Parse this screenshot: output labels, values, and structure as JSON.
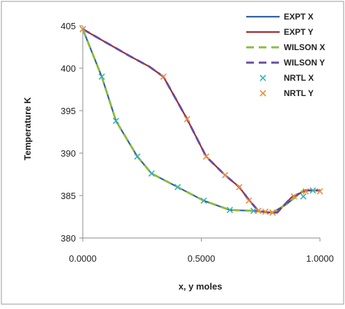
{
  "chart_data": {
    "type": "line",
    "title": "",
    "xlabel": "x, y moles",
    "ylabel": "Temperature K",
    "xlim": [
      0,
      1
    ],
    "ylim": [
      380,
      405
    ],
    "xticks": [
      0,
      0.5,
      1.0
    ],
    "xtick_labels": [
      "0.0000",
      "0.5000",
      "1.0000"
    ],
    "yticks": [
      380,
      385,
      390,
      395,
      400,
      405
    ],
    "ytick_labels": [
      "380",
      "385",
      "390",
      "395",
      "400",
      "405"
    ],
    "grid": false,
    "legend": "top-right",
    "series": [
      {
        "name": "EXPT X",
        "style": "solid",
        "color": "#2e5fa3",
        "x": [
          0.0,
          0.08,
          0.14,
          0.23,
          0.29,
          0.4,
          0.51,
          0.62,
          0.72,
          0.8,
          0.86,
          0.93,
          1.0
        ],
        "y": [
          404.6,
          399.0,
          393.8,
          389.6,
          387.6,
          386.0,
          384.4,
          383.3,
          383.2,
          383.0,
          384.0,
          385.6,
          385.6
        ]
      },
      {
        "name": "EXPT Y",
        "style": "solid",
        "color": "#a3282c",
        "x": [
          0.0,
          0.1,
          0.2,
          0.28,
          0.34,
          0.44,
          0.52,
          0.6,
          0.66,
          0.7,
          0.74,
          0.78,
          0.82,
          0.88,
          0.94,
          1.0
        ],
        "y": [
          404.6,
          403.0,
          401.4,
          400.2,
          399.0,
          394.0,
          389.6,
          387.4,
          386.0,
          384.5,
          383.2,
          383.0,
          383.0,
          384.8,
          385.6,
          385.6
        ]
      },
      {
        "name": "WILSON X",
        "style": "dashed",
        "color": "#8dbb3f",
        "x": [
          0.0,
          0.08,
          0.14,
          0.23,
          0.29,
          0.4,
          0.51,
          0.62,
          0.72,
          0.8,
          0.86,
          0.93,
          1.0
        ],
        "y": [
          404.6,
          399.0,
          393.8,
          389.6,
          387.6,
          386.0,
          384.4,
          383.3,
          383.2,
          383.0,
          384.0,
          385.6,
          385.6
        ]
      },
      {
        "name": "WILSON Y",
        "style": "dashed",
        "color": "#6a4aa0",
        "x": [
          0.0,
          0.1,
          0.2,
          0.28,
          0.34,
          0.44,
          0.52,
          0.6,
          0.66,
          0.7,
          0.74,
          0.78,
          0.82,
          0.88,
          0.94,
          1.0
        ],
        "y": [
          404.6,
          403.0,
          401.4,
          400.2,
          399.0,
          394.0,
          389.6,
          387.4,
          386.0,
          384.5,
          383.2,
          383.0,
          383.0,
          384.8,
          385.6,
          385.6
        ]
      },
      {
        "name": "NRTL X",
        "style": "marker-x",
        "color": "#3aaeb8",
        "x": [
          0.0,
          0.08,
          0.14,
          0.23,
          0.29,
          0.4,
          0.51,
          0.62,
          0.72,
          0.8,
          0.93,
          0.97
        ],
        "y": [
          404.6,
          399.0,
          393.8,
          389.6,
          387.6,
          386.0,
          384.4,
          383.3,
          383.2,
          383.0,
          384.9,
          385.6
        ]
      },
      {
        "name": "NRTL Y",
        "style": "marker-x",
        "color": "#ee8a3a",
        "x": [
          0.0,
          0.34,
          0.44,
          0.52,
          0.6,
          0.66,
          0.7,
          0.74,
          0.77,
          0.8,
          0.89,
          0.94,
          1.0
        ],
        "y": [
          404.6,
          399.0,
          394.0,
          389.6,
          387.4,
          386.0,
          384.4,
          383.2,
          383.1,
          383.0,
          384.9,
          385.5,
          385.5
        ]
      }
    ]
  }
}
